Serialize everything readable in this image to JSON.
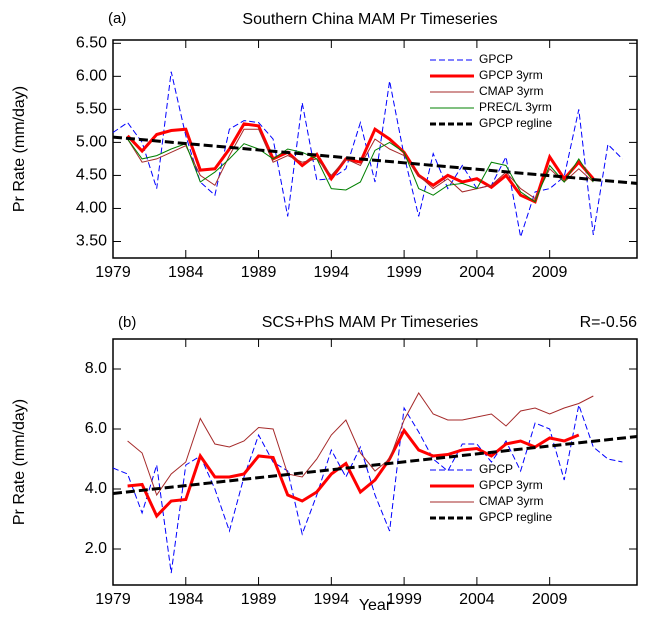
{
  "chart_data": [
    {
      "type": "line",
      "panel": "(a)",
      "title": "Southern China MAM Pr Timeseries",
      "ylabel": "Pr Rate (mm/day)",
      "x": [
        1979,
        1980,
        1981,
        1982,
        1983,
        1984,
        1985,
        1986,
        1987,
        1988,
        1989,
        1990,
        1991,
        1992,
        1993,
        1994,
        1995,
        1996,
        1997,
        1998,
        1999,
        2000,
        2001,
        2002,
        2003,
        2004,
        2005,
        2006,
        2007,
        2008,
        2009,
        2010,
        2011,
        2012,
        2013,
        2014
      ],
      "xlim": [
        1979,
        2015
      ],
      "xticks": [
        1979,
        1984,
        1989,
        1994,
        1999,
        2004,
        2009
      ],
      "ylim": [
        3.25,
        6.55
      ],
      "yticks": [
        {
          "value": 3.5,
          "label": "3.50"
        },
        {
          "value": 4.0,
          "label": "4.00"
        },
        {
          "value": 4.5,
          "label": "4.50"
        },
        {
          "value": 5.0,
          "label": "5.00"
        },
        {
          "value": 5.5,
          "label": "5.50"
        },
        {
          "value": 6.0,
          "label": "6.00"
        },
        {
          "value": 6.5,
          "label": "6.50"
        }
      ],
      "series": [
        {
          "name": "GPCP",
          "color": "#0000ff",
          "width": 1,
          "dash": true,
          "values": [
            5.15,
            5.3,
            5.0,
            4.3,
            6.07,
            5.1,
            4.4,
            4.2,
            5.2,
            5.33,
            5.3,
            5.05,
            3.88,
            5.6,
            4.43,
            4.45,
            4.6,
            5.3,
            4.4,
            5.93,
            4.8,
            3.88,
            4.83,
            4.3,
            4.65,
            4.3,
            4.35,
            4.78,
            3.57,
            4.25,
            4.3,
            4.48,
            5.5,
            3.6,
            4.97,
            4.75
          ]
        },
        {
          "name": "GPCP 3yrm",
          "color": "#ff0000",
          "width": 3,
          "dash": false,
          "values": [
            null,
            5.1,
            4.87,
            5.12,
            5.18,
            5.2,
            4.58,
            4.6,
            4.9,
            5.28,
            5.25,
            4.75,
            4.85,
            4.65,
            4.82,
            4.45,
            4.75,
            4.7,
            5.2,
            5.05,
            4.85,
            4.5,
            4.35,
            4.5,
            4.4,
            4.45,
            4.32,
            4.5,
            4.2,
            4.1,
            4.78,
            4.45,
            4.7,
            4.45,
            null,
            null
          ]
        },
        {
          "name": "CMAP 3yrm",
          "color": "#a52a2a",
          "width": 1,
          "dash": false,
          "values": [
            null,
            5.05,
            4.7,
            4.75,
            4.85,
            4.95,
            4.5,
            4.35,
            4.8,
            5.2,
            5.2,
            4.7,
            4.8,
            4.7,
            4.75,
            4.5,
            4.75,
            4.65,
            5.05,
            4.9,
            4.8,
            4.5,
            4.3,
            4.45,
            4.25,
            4.3,
            4.35,
            4.55,
            4.3,
            4.15,
            4.6,
            4.4,
            4.6,
            4.4,
            null,
            null
          ]
        },
        {
          "name": "PREC/L 3yrm",
          "color": "#008000",
          "width": 1,
          "dash": false,
          "values": [
            null,
            5.05,
            4.75,
            4.8,
            4.9,
            4.98,
            4.4,
            4.55,
            4.75,
            4.98,
            4.9,
            4.75,
            4.9,
            4.85,
            4.75,
            4.3,
            4.28,
            4.4,
            4.88,
            5.0,
            4.85,
            4.3,
            4.2,
            4.35,
            4.38,
            4.3,
            4.7,
            4.65,
            4.25,
            4.1,
            4.65,
            4.4,
            4.75,
            4.4,
            null,
            null
          ]
        },
        {
          "name": "GPCP regline",
          "color": "#000000",
          "width": 3,
          "dash": true,
          "x": [
            1979,
            2015
          ],
          "values": [
            5.08,
            4.38
          ]
        }
      ]
    },
    {
      "type": "line",
      "panel": "(b)",
      "title": "SCS+PhS MAM Pr Timeseries",
      "annotation": "R=-0.56",
      "ylabel": "Pr Rate (mm/day)",
      "xlabel": "Year",
      "x": [
        1979,
        1980,
        1981,
        1982,
        1983,
        1984,
        1985,
        1986,
        1987,
        1988,
        1989,
        1990,
        1991,
        1992,
        1993,
        1994,
        1995,
        1996,
        1997,
        1998,
        1999,
        2000,
        2001,
        2002,
        2003,
        2004,
        2005,
        2006,
        2007,
        2008,
        2009,
        2010,
        2011,
        2012,
        2013,
        2014
      ],
      "xlim": [
        1979,
        2015
      ],
      "xticks": [
        1979,
        1984,
        1989,
        1994,
        1999,
        2004,
        2009
      ],
      "ylim": [
        0.8,
        9.0
      ],
      "yticks": [
        {
          "value": 2.0,
          "label": "2.0"
        },
        {
          "value": 4.0,
          "label": "4.0"
        },
        {
          "value": 6.0,
          "label": "6.0"
        },
        {
          "value": 8.0,
          "label": "8.0"
        }
      ],
      "series": [
        {
          "name": "GPCP",
          "color": "#0000ff",
          "width": 1,
          "dash": true,
          "values": [
            4.7,
            4.5,
            3.2,
            4.8,
            1.2,
            4.8,
            5.1,
            4.0,
            2.6,
            4.4,
            5.8,
            4.9,
            4.6,
            2.5,
            3.8,
            5.3,
            4.4,
            5.4,
            3.8,
            2.6,
            6.7,
            5.9,
            5.0,
            4.6,
            5.5,
            5.5,
            4.9,
            5.6,
            4.6,
            6.2,
            6.0,
            4.3,
            6.8,
            5.4,
            5.0,
            4.9
          ]
        },
        {
          "name": "GPCP 3yrm",
          "color": "#ff0000",
          "width": 3,
          "dash": false,
          "values": [
            null,
            4.1,
            4.15,
            3.1,
            3.6,
            3.65,
            5.1,
            4.4,
            4.4,
            4.5,
            5.1,
            5.05,
            3.8,
            3.6,
            3.9,
            4.5,
            4.85,
            3.9,
            4.3,
            5.0,
            5.95,
            5.3,
            5.1,
            5.15,
            5.3,
            5.35,
            5.1,
            5.5,
            5.6,
            5.4,
            5.7,
            5.6,
            5.8,
            null,
            null,
            null
          ]
        },
        {
          "name": "CMAP 3yrm",
          "color": "#a52a2a",
          "width": 1,
          "dash": false,
          "values": [
            null,
            5.6,
            5.2,
            3.8,
            4.5,
            4.9,
            6.35,
            5.5,
            5.4,
            5.6,
            6.05,
            6.0,
            4.5,
            4.4,
            5.0,
            5.8,
            6.3,
            5.2,
            4.6,
            5.0,
            6.3,
            7.2,
            6.5,
            6.3,
            6.3,
            6.4,
            6.5,
            6.1,
            6.6,
            6.7,
            6.5,
            6.7,
            6.85,
            7.1,
            null,
            null
          ]
        },
        {
          "name": "GPCP regline",
          "color": "#000000",
          "width": 3,
          "dash": true,
          "x": [
            1979,
            2015
          ],
          "values": [
            3.85,
            5.75
          ]
        }
      ]
    }
  ]
}
